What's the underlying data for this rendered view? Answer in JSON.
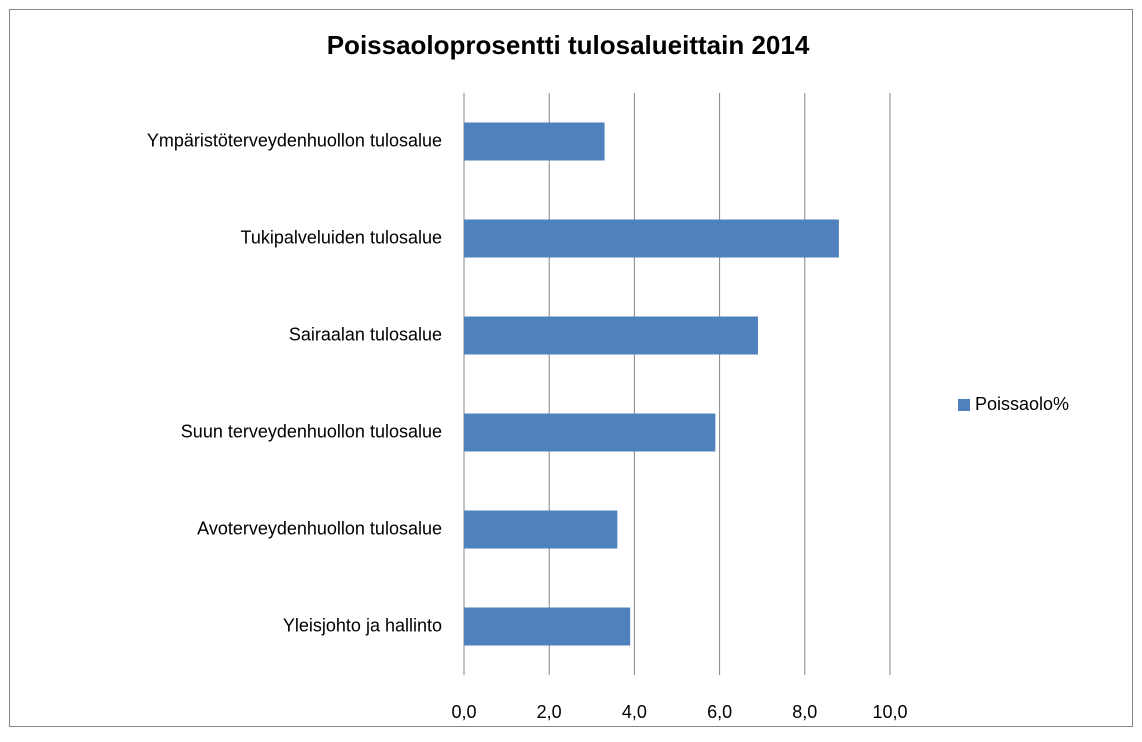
{
  "chart_data": {
    "type": "bar",
    "orientation": "horizontal",
    "title": "Poissaoloprosentti tulosalueittain 2014",
    "categories": [
      "Ympäristöterveydenhuollon tulosalue",
      "Tukipalveluiden tulosalue",
      "Sairaalan tulosalue",
      "Suun terveydenhuollon tulosalue",
      "Avoterveydenhuollon tulosalue",
      "Yleisjohto ja hallinto"
    ],
    "series": [
      {
        "name": "Poissaolo%",
        "color": "#4f81bd",
        "values": [
          3.3,
          8.8,
          6.9,
          5.9,
          3.6,
          3.9
        ]
      }
    ],
    "xlim": [
      0,
      10
    ],
    "xticks": [
      {
        "value": 0,
        "label": "0,0"
      },
      {
        "value": 2,
        "label": "2,0"
      },
      {
        "value": 4,
        "label": "4,0"
      },
      {
        "value": 6,
        "label": "6,0"
      },
      {
        "value": 8,
        "label": "8,0"
      },
      {
        "value": 10,
        "label": "10,0"
      }
    ],
    "grid": true,
    "legend": "right"
  }
}
